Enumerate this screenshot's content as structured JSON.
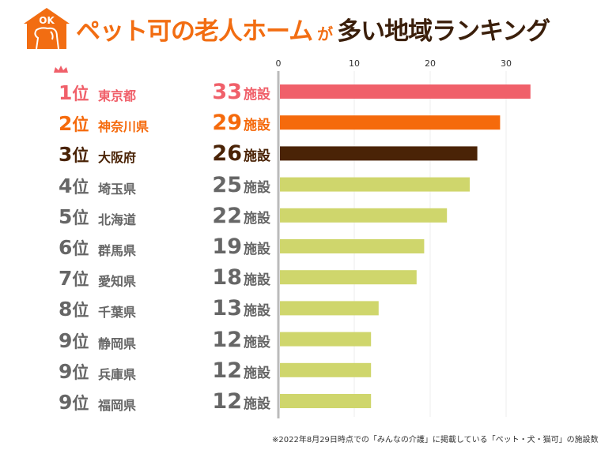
{
  "header": {
    "title_main": "ペット可の老人ホーム",
    "title_particle": "が",
    "title_rest": "多い地域ランキング",
    "logo_text": "OK"
  },
  "footnote": "※2022年8月29日時点での「みんなの介護」に掲載している「ペット・犬・猫可」の施設数",
  "colors": {
    "rank1": "#f0606a",
    "rank2": "#f56a0c",
    "rank3": "#4a2306",
    "others": "#cfd66c",
    "other_text": "#666666",
    "axis": "#bbbbbb"
  },
  "chart_data": {
    "type": "bar",
    "orientation": "horizontal",
    "xlim": [
      0,
      33
    ],
    "xticks": [
      0,
      10,
      20,
      30
    ],
    "unit": "施設",
    "rank_suffix": "位",
    "rows": [
      {
        "rank": "1",
        "name": "東京都",
        "value": 33
      },
      {
        "rank": "2",
        "name": "神奈川県",
        "value": 29
      },
      {
        "rank": "3",
        "name": "大阪府",
        "value": 26
      },
      {
        "rank": "4",
        "name": "埼玉県",
        "value": 25
      },
      {
        "rank": "5",
        "name": "北海道",
        "value": 22
      },
      {
        "rank": "6",
        "name": "群馬県",
        "value": 19
      },
      {
        "rank": "7",
        "name": "愛知県",
        "value": 18
      },
      {
        "rank": "8",
        "name": "千葉県",
        "value": 13
      },
      {
        "rank": "9",
        "name": "静岡県",
        "value": 12
      },
      {
        "rank": "9",
        "name": "兵庫県",
        "value": 12
      },
      {
        "rank": "9",
        "name": "福岡県",
        "value": 12
      }
    ]
  }
}
